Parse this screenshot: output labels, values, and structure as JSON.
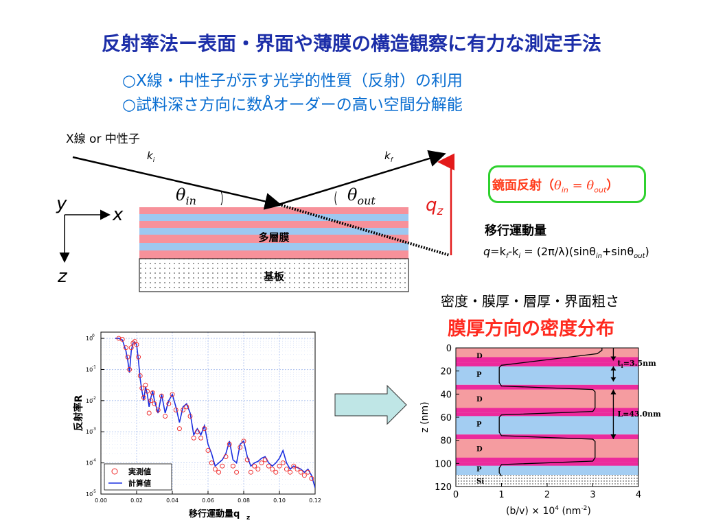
{
  "title": "反射率法ー表面・界面や薄膜の構造観察に有力な測定手法",
  "bullets": [
    "○X線・中性子が示す光学的性質（反射）の利用",
    "○試料深さ方向に数Åオーダーの高い空間分解能"
  ],
  "diagram": {
    "source_label": "X線 or 中性子",
    "k_in": "k",
    "k_in_sub": "i",
    "k_out": "k",
    "k_out_sub": "f",
    "theta": "θ",
    "theta_in_sub": "in",
    "theta_out_sub": "out",
    "axis_y": "y",
    "axis_x": "x",
    "axis_z": "z",
    "qz_label": "q",
    "qz_sub": "z",
    "multilayer_label": "多層膜",
    "substrate_label": "基板"
  },
  "specular": {
    "label": "鏡面反射（",
    "theta": "θ",
    "in": "in",
    "eq": " = ",
    "out": "out",
    "close": "）"
  },
  "momentum": {
    "label": "移行運動量",
    "q": "q",
    "eq1": "=k",
    "f": "f",
    "minus": "-k",
    "i": "i",
    "rest": " = (2π/λ)(sinθ",
    "in": "in",
    "plus": "+sinθ",
    "out": "out",
    "close": ")"
  },
  "params_text": "密度・膜厚・層厚・界面粗さ",
  "density_title": "膜厚方向の密度分布",
  "colors": {
    "title": "#1c2ea8",
    "subtitle": "#0a6ed1",
    "layer_pink": "#f7919a",
    "layer_blue": "#9dc8f0",
    "density_d": "#f59ca0",
    "density_p": "#a3cdf2",
    "density_magenta": "#ec2a9c",
    "calc_line": "#1a2ee0",
    "meas_marker": "#ee2222",
    "arrow_fill": "#bfe6e6",
    "spec_border": "#2fd12f",
    "spec_text": "#ff3a1a"
  },
  "chart_data": [
    {
      "type": "scatter",
      "title": "",
      "xlabel": "移行運動量q",
      "xlabel_sub": "z",
      "ylabel": "反射率R",
      "xlim": [
        0.0,
        0.12
      ],
      "ylim_log10": [
        -5,
        0.2
      ],
      "x_ticks": [
        "0.00",
        "0.02",
        "0.04",
        "0.06",
        "0.08",
        "0.10",
        "0.12"
      ],
      "y_ticks": [
        "10",
        "10",
        "10",
        "10",
        "10",
        "10"
      ],
      "y_tick_exps": [
        "0",
        "-1",
        "-2",
        "-3",
        "-4",
        "-5"
      ],
      "y_scale": "log",
      "grid": "dotted",
      "legend_position": "bottom-left",
      "series": [
        {
          "name": "実測値",
          "marker": "open-circle",
          "x": [
            0.01,
            0.012,
            0.014,
            0.015,
            0.016,
            0.017,
            0.018,
            0.019,
            0.02,
            0.021,
            0.022,
            0.023,
            0.024,
            0.025,
            0.026,
            0.027,
            0.028,
            0.029,
            0.03,
            0.032,
            0.034,
            0.036,
            0.038,
            0.04,
            0.042,
            0.044,
            0.046,
            0.048,
            0.05,
            0.052,
            0.054,
            0.056,
            0.058,
            0.06,
            0.062,
            0.064,
            0.066,
            0.068,
            0.07,
            0.072,
            0.074,
            0.076,
            0.078,
            0.08,
            0.082,
            0.084,
            0.086,
            0.088,
            0.09,
            0.092,
            0.094,
            0.096,
            0.098,
            0.1,
            0.102,
            0.104,
            0.106,
            0.108,
            0.11,
            0.112,
            0.114,
            0.116,
            0.118
          ],
          "log10_y": [
            0.0,
            -0.03,
            -0.3,
            -0.6,
            -1.0,
            -0.3,
            -0.15,
            -0.1,
            -0.2,
            -0.6,
            -1.2,
            -1.6,
            -1.9,
            -1.5,
            -1.7,
            -2.4,
            -2.0,
            -1.75,
            -2.1,
            -2.3,
            -1.85,
            -2.5,
            -2.1,
            -1.8,
            -2.3,
            -2.9,
            -2.3,
            -2.2,
            -2.5,
            -3.2,
            -3.0,
            -3.2,
            -2.9,
            -3.6,
            -4.0,
            -4.2,
            -4.3,
            -4.1,
            -3.8,
            -3.4,
            -4.1,
            -4.3,
            -3.5,
            -3.3,
            -3.9,
            -4.3,
            -4.1,
            -4.2,
            -4.0,
            -3.9,
            -4.1,
            -4.2,
            -4.3,
            -4.1,
            -4.0,
            -4.2,
            -4.3,
            -4.1,
            -4.2,
            -4.3,
            -4.4,
            -4.3,
            -4.5
          ]
        },
        {
          "name": "計算値",
          "marker": "line",
          "x": [
            0.008,
            0.01,
            0.012,
            0.014,
            0.015,
            0.016,
            0.017,
            0.018,
            0.019,
            0.02,
            0.021,
            0.022,
            0.023,
            0.024,
            0.025,
            0.026,
            0.027,
            0.028,
            0.029,
            0.03,
            0.032,
            0.034,
            0.036,
            0.038,
            0.04,
            0.042,
            0.044,
            0.046,
            0.048,
            0.05,
            0.052,
            0.054,
            0.056,
            0.058,
            0.06,
            0.062,
            0.064,
            0.066,
            0.068,
            0.07,
            0.072,
            0.074,
            0.076,
            0.078,
            0.08,
            0.082,
            0.084,
            0.086,
            0.088,
            0.09,
            0.092,
            0.094,
            0.096,
            0.098,
            0.1,
            0.102,
            0.104,
            0.106,
            0.108,
            0.11,
            0.112,
            0.114,
            0.116,
            0.118,
            0.12
          ],
          "log10_y": [
            0.0,
            0.0,
            -0.05,
            -0.4,
            -0.7,
            -1.1,
            -0.4,
            -0.15,
            -0.12,
            -0.2,
            -0.7,
            -1.3,
            -1.7,
            -2.0,
            -1.55,
            -1.8,
            -2.2,
            -1.9,
            -1.7,
            -2.0,
            -2.4,
            -1.8,
            -2.4,
            -2.0,
            -1.8,
            -2.2,
            -2.7,
            -2.2,
            -2.1,
            -2.4,
            -3.1,
            -2.9,
            -3.1,
            -2.8,
            -3.4,
            -3.7,
            -4.1,
            -4.0,
            -3.9,
            -3.7,
            -3.3,
            -3.9,
            -4.0,
            -3.4,
            -3.3,
            -3.8,
            -4.1,
            -4.0,
            -3.95,
            -3.85,
            -3.8,
            -4.0,
            -4.1,
            -4.0,
            -3.85,
            -3.6,
            -4.0,
            -4.2,
            -4.1,
            -4.15,
            -4.2,
            -4.3,
            -4.2,
            -4.4,
            -4.8
          ]
        }
      ]
    },
    {
      "type": "line",
      "title": "",
      "xlabel": "(b/v) × 10",
      "xlabel_exp": "4",
      "xlabel_unit": " (nm",
      "xlabel_unit_exp": "-2",
      "xlabel_close": ")",
      "ylabel": "z (nm)",
      "xlim": [
        0,
        4
      ],
      "ylim": [
        120,
        0
      ],
      "x_ticks": [
        "0",
        "1",
        "2",
        "3",
        "4"
      ],
      "y_ticks": [
        "0",
        "20",
        "40",
        "60",
        "80",
        "100",
        "120"
      ],
      "layers": [
        {
          "label": "D",
          "from": 0,
          "to": 13,
          "kind": "D"
        },
        {
          "label": "P",
          "from": 13,
          "to": 32,
          "kind": "P"
        },
        {
          "label": "D",
          "from": 32,
          "to": 56,
          "kind": "D"
        },
        {
          "label": "P",
          "from": 56,
          "to": 75,
          "kind": "P"
        },
        {
          "label": "D",
          "from": 75,
          "to": 99,
          "kind": "D"
        },
        {
          "label": "P",
          "from": 99,
          "to": 110,
          "kind": "P"
        },
        {
          "label": "Si",
          "from": 110,
          "to": 120,
          "kind": "Si"
        }
      ],
      "magenta_bands": [
        [
          8,
          13
        ],
        [
          13,
          16
        ],
        [
          32,
          36
        ],
        [
          52,
          56
        ],
        [
          56,
          59
        ],
        [
          75,
          79
        ],
        [
          95,
          99
        ],
        [
          99,
          102
        ]
      ],
      "series": [
        {
          "name": "",
          "x": [
            3.2,
            3.2,
            3.1,
            1.0,
            0.95,
            0.95,
            1.0,
            3.0,
            3.05,
            3.05,
            3.0,
            1.0,
            0.95,
            0.95,
            1.0,
            3.0,
            3.05,
            3.05,
            3.0,
            1.0,
            0.95,
            0.95,
            1.0
          ],
          "z": [
            0,
            2,
            5,
            15,
            17,
            30,
            33,
            36,
            38,
            52,
            55,
            58,
            60,
            73,
            76,
            79,
            81,
            95,
            98,
            101,
            104,
            108,
            111
          ]
        }
      ],
      "annotations": [
        {
          "text": "t",
          "sub": "I",
          "rest": "=3.5nm"
        },
        {
          "text": "L=43.0nm"
        }
      ]
    }
  ]
}
